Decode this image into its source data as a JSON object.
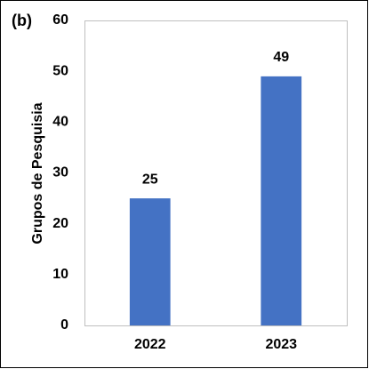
{
  "chart_data": {
    "type": "bar",
    "panel_label": "(b)",
    "y_label": "Grupos de Pesquisia",
    "categories": [
      "2022",
      "2023"
    ],
    "values": [
      25,
      49
    ],
    "color": "#4472c4",
    "ylim": [
      0,
      60
    ],
    "yticks": [
      0,
      10,
      20,
      30,
      40,
      50,
      60
    ],
    "grid": false
  }
}
